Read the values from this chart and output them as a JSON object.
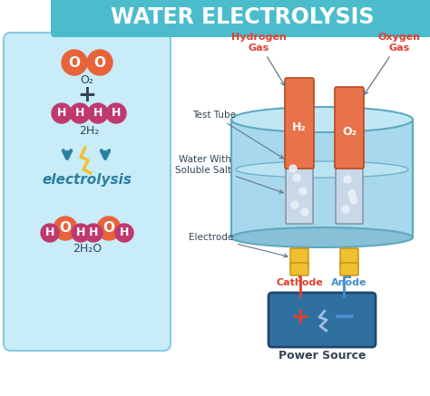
{
  "title": "WATER ELECTROLYSIS",
  "title_color": "#ffffff",
  "title_bg_top": "#4bbccc",
  "title_bg_bot": "#38a8b8",
  "bg_color": "#ffffff",
  "left_panel_color": "#c8ecf8",
  "left_panel_edge": "#88cce0",
  "oxygen_color": "#e8623a",
  "hydrogen_color": "#c0396e",
  "h_label_color": "#ffffff",
  "o_label_color": "#ffffff",
  "teal_arrow_color": "#2b7fa0",
  "lightning_color": "#f5c030",
  "electrolysis_color": "#2b7fa0",
  "tube_orange": "#e8724a",
  "tube_orange_edge": "#b84820",
  "tube_gray": "#c8d8e8",
  "tube_gray_edge": "#8898a8",
  "tank_body_color": "#a8d8ec",
  "tank_top_color": "#c0e8f4",
  "tank_bot_color": "#88c0d8",
  "tank_edge": "#60a8c0",
  "water_band_color": "#b8e0f0",
  "electrode_color": "#f0c030",
  "electrode_edge": "#c09010",
  "battery_color": "#3070a0",
  "battery_edge": "#204870",
  "battery_plus_color": "#e04030",
  "battery_minus_color": "#5090d8",
  "battery_lightning_color": "#a0c0e0",
  "cathode_color": "#e04030",
  "anode_color": "#4090d0",
  "wire_red": "#e04030",
  "wire_blue": "#4090d0",
  "label_dark": "#334455",
  "h_gas_label_color": "#e04030",
  "o_gas_label_color": "#e04030",
  "bubble_color": "#e8f0f8",
  "h2_label": "H₂",
  "o2_label": "O₂",
  "test_tube_label": "Test Tube",
  "water_label": "Water With\nSoluble Salt",
  "electrode_label": "Electrode",
  "cathode_label": "Cathode",
  "anode_label": "Anode",
  "power_label": "Power Source",
  "hydrogen_gas_label": "Hydrogen\nGas",
  "oxygen_gas_label": "Oxygen\nGas",
  "electrolysis_label": "electrolysis",
  "o2_formula": "O₂",
  "h2_formula": "2H₂",
  "h2o_formula": "2H₂O"
}
